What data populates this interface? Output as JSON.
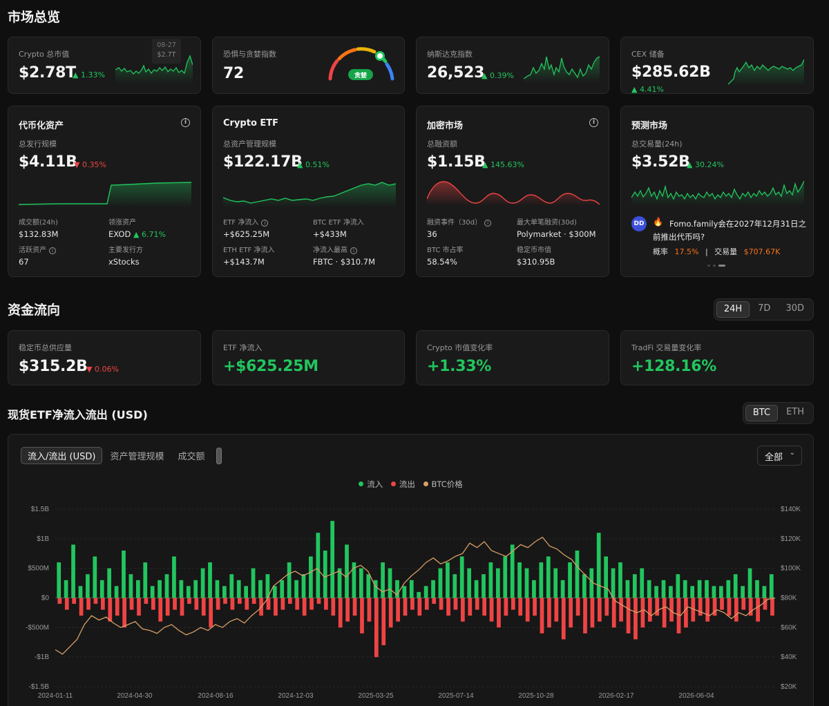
{
  "sections": {
    "market_overview": "市场总览",
    "fund_flow": "资金流向",
    "etf_flow": "现货ETF净流入流出 (USD)"
  },
  "top_cards": [
    {
      "label": "Crypto 总市值",
      "value": "$2.78T",
      "change": "1.33%",
      "tooltip_date": "08-27",
      "tooltip_value": "$2.7T"
    },
    {
      "label": "恐惧与贪婪指数",
      "value": "72",
      "gauge_label": "贪婪"
    },
    {
      "label": "纳斯达克指数",
      "value": "26,523",
      "change": "0.39%"
    },
    {
      "label": "CEX 储备",
      "value": "$285.62B",
      "change": "4.41%"
    }
  ],
  "tokenized": {
    "title": "代币化资产",
    "sub": "总发行规模",
    "value": "$4.11B",
    "change": "0.35%",
    "stats": [
      {
        "label": "成交额(24h)",
        "value": "$132.83M"
      },
      {
        "label": "领涨资产",
        "value": "EXOD",
        "change": "6.71%"
      },
      {
        "label": "活跃资产",
        "value": "67"
      },
      {
        "label": "主要发行方",
        "value": "xStocks"
      }
    ]
  },
  "etf": {
    "title": "Crypto ETF",
    "sub": "总资产管理规模",
    "value": "$122.17B",
    "change": "0.51%",
    "stats": [
      {
        "label": "ETF 净流入",
        "value": "+$625.25M"
      },
      {
        "label": "BTC ETF 净流入",
        "value": "+$433M"
      },
      {
        "label": "ETH ETF 净流入",
        "value": "+$143.7M"
      },
      {
        "label": "净流入最高",
        "value": "FBTC · $310.7M"
      }
    ]
  },
  "crypto_market": {
    "title": "加密市场",
    "sub": "总融资额",
    "value": "$1.15B",
    "change": "145.63%",
    "stats": [
      {
        "label": "融资事件（30d）",
        "value": "36"
      },
      {
        "label": "最大单笔融资(30d)",
        "value": "Polymarket · $300M"
      },
      {
        "label": "BTC 市占率",
        "value": "58.54%"
      },
      {
        "label": "稳定币市值",
        "value": "$310.95B"
      }
    ]
  },
  "prediction": {
    "title": "预测市场",
    "sub": "总交易量(24h)",
    "value": "$3.52B",
    "change": "30.24%",
    "question": "Fomo.family会在2027年12月31日之前推出代币吗?",
    "prob_label": "概率",
    "prob_value": "17.5%",
    "vol_label": "交易量",
    "vol_value": "$707.67K"
  },
  "fund_range": {
    "options": [
      "24H",
      "7D",
      "30D"
    ],
    "selected": "24H"
  },
  "fund_cards": [
    {
      "label": "稳定币总供应量",
      "value": "$315.2B",
      "change": "0.06%"
    },
    {
      "label": "ETF 净流入",
      "value": "+$625.25M"
    },
    {
      "label": "Crypto 市值变化率",
      "value": "+1.33%"
    },
    {
      "label": "TradFi 交易量变化率",
      "value": "+128.16%"
    }
  ],
  "asset_toggle": {
    "options": [
      "BTC",
      "ETH"
    ],
    "selected": "BTC"
  },
  "chart_tabs": [
    "流入/流出 (USD)",
    "资产管理规模",
    "成交额"
  ],
  "chart_filter": "全部",
  "colors": {
    "inflow": "#22c55e",
    "outflow": "#ef4444",
    "price": "#d9a066"
  },
  "chart_data": {
    "type": "bar",
    "legend": [
      "流入",
      "流出",
      "BTC价格"
    ],
    "x_ticks": [
      "2024-01-11",
      "2024-04-30",
      "2024-08-16",
      "2024-12-03",
      "2025-03-25",
      "2025-07-14",
      "2025-10-28",
      "2026-02-17",
      "2026-06-04"
    ],
    "y_left_ticks": [
      "$1.5B",
      "$1B",
      "$500M",
      "$0",
      "-$500M",
      "-$1B",
      "-$1.5B"
    ],
    "y_right_ticks": [
      "$140K",
      "$120K",
      "$100K",
      "$80K",
      "$60K",
      "$40K",
      "$20K"
    ],
    "ylim_left": [
      -1.5,
      1.5
    ],
    "ylim_right": [
      20,
      140
    ],
    "inflow_B": [
      0.6,
      0.3,
      0.9,
      0.2,
      0.4,
      0.7,
      0.3,
      0.5,
      0.2,
      0.8,
      0.4,
      0.3,
      0.6,
      0.2,
      0.3,
      0.4,
      0.7,
      0.3,
      0.2,
      0.3,
      0.5,
      0.6,
      0.3,
      0.2,
      0.4,
      0.3,
      0.2,
      0.5,
      0.3,
      0.4,
      0.2,
      0.3,
      0.6,
      0.3,
      0.4,
      0.7,
      1.1,
      0.8,
      1.3,
      0.5,
      0.9,
      0.6,
      0.5,
      0.4,
      0.3,
      0.6,
      0.5,
      0.3,
      0.2,
      0.3,
      0.1,
      0.2,
      0.3,
      0.5,
      0.6,
      0.4,
      0.7,
      0.5,
      0.3,
      0.4,
      0.6,
      0.5,
      0.7,
      0.9,
      0.6,
      0.5,
      0.3,
      0.6,
      0.7,
      0.5,
      0.3,
      0.6,
      0.8,
      0.4,
      0.5,
      1.1,
      0.7,
      0.5,
      0.6,
      0.3,
      0.4,
      0.5,
      0.3,
      0.2,
      0.3,
      0.2,
      0.4,
      0.3,
      0.2,
      0.3,
      0.3,
      0.2,
      0.2,
      0.3,
      0.4,
      0.2,
      0.5,
      0.3,
      0.2,
      0.4
    ],
    "outflow_B": [
      -0.1,
      -0.2,
      -0.1,
      -0.3,
      -0.2,
      -0.1,
      -0.2,
      -0.4,
      -0.3,
      -0.5,
      -0.2,
      -0.3,
      -0.1,
      -0.2,
      -0.4,
      -0.3,
      -0.2,
      -0.3,
      -0.1,
      -0.2,
      -0.3,
      -0.5,
      -0.2,
      -0.1,
      -0.2,
      -0.1,
      -0.2,
      -0.1,
      -0.3,
      -0.2,
      -0.3,
      -0.2,
      -0.1,
      -0.2,
      -0.3,
      -0.2,
      -0.1,
      -0.2,
      -0.3,
      -0.5,
      -0.4,
      -0.3,
      -0.6,
      -0.4,
      -1.0,
      -0.8,
      -0.5,
      -0.4,
      -0.3,
      -0.2,
      -0.3,
      -0.2,
      -0.1,
      -0.2,
      -0.3,
      -0.2,
      -0.4,
      -0.3,
      -0.2,
      -0.3,
      -0.4,
      -0.5,
      -0.3,
      -0.2,
      -0.3,
      -0.4,
      -0.3,
      -0.6,
      -0.5,
      -0.4,
      -0.7,
      -0.5,
      -0.3,
      -0.6,
      -0.5,
      -0.4,
      -0.3,
      -0.5,
      -0.4,
      -0.6,
      -0.7,
      -0.5,
      -0.4,
      -0.3,
      -0.5,
      -0.4,
      -0.6,
      -0.5,
      -0.4,
      -0.3,
      -0.4,
      -0.3,
      -0.2,
      -0.3,
      -0.4,
      -0.2,
      -0.3,
      -0.4,
      -0.2,
      -0.3
    ],
    "btc_price_K": [
      45,
      42,
      47,
      52,
      62,
      68,
      65,
      67,
      63,
      60,
      62,
      64,
      59,
      58,
      56,
      60,
      62,
      58,
      55,
      57,
      60,
      58,
      62,
      60,
      64,
      66,
      63,
      68,
      72,
      78,
      88,
      92,
      96,
      98,
      95,
      97,
      100,
      94,
      96,
      98,
      94,
      100,
      102,
      98,
      88,
      84,
      86,
      82,
      90,
      95,
      99,
      104,
      107,
      103,
      105,
      108,
      110,
      117,
      114,
      118,
      112,
      110,
      108,
      112,
      116,
      114,
      118,
      121,
      115,
      113,
      109,
      106,
      100,
      95,
      90,
      88,
      86,
      78,
      75,
      72,
      70,
      72,
      68,
      72,
      74,
      70,
      68,
      74,
      72,
      70,
      68,
      72,
      70,
      66,
      70,
      68,
      72,
      75,
      79,
      80
    ]
  }
}
